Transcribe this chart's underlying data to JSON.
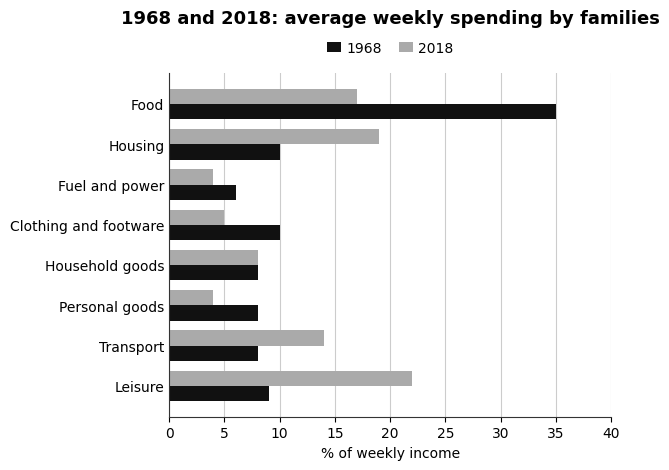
{
  "title": "1968 and 2018: average weekly spending by families",
  "categories": [
    "Food",
    "Housing",
    "Fuel and power",
    "Clothing and footware",
    "Household goods",
    "Personal goods",
    "Transport",
    "Leisure"
  ],
  "values_1968": [
    35,
    10,
    6,
    10,
    8,
    8,
    8,
    9
  ],
  "values_2018": [
    17,
    19,
    4,
    5,
    8,
    4,
    14,
    22
  ],
  "color_1968": "#111111",
  "color_2018": "#aaaaaa",
  "xlabel": "% of weekly income",
  "xlim": [
    0,
    40
  ],
  "xticks": [
    0,
    5,
    10,
    15,
    20,
    25,
    30,
    35,
    40
  ],
  "legend_labels": [
    "1968",
    "2018"
  ],
  "bar_height": 0.38,
  "title_fontsize": 13,
  "label_fontsize": 10,
  "tick_fontsize": 10,
  "background_color": "#ffffff"
}
